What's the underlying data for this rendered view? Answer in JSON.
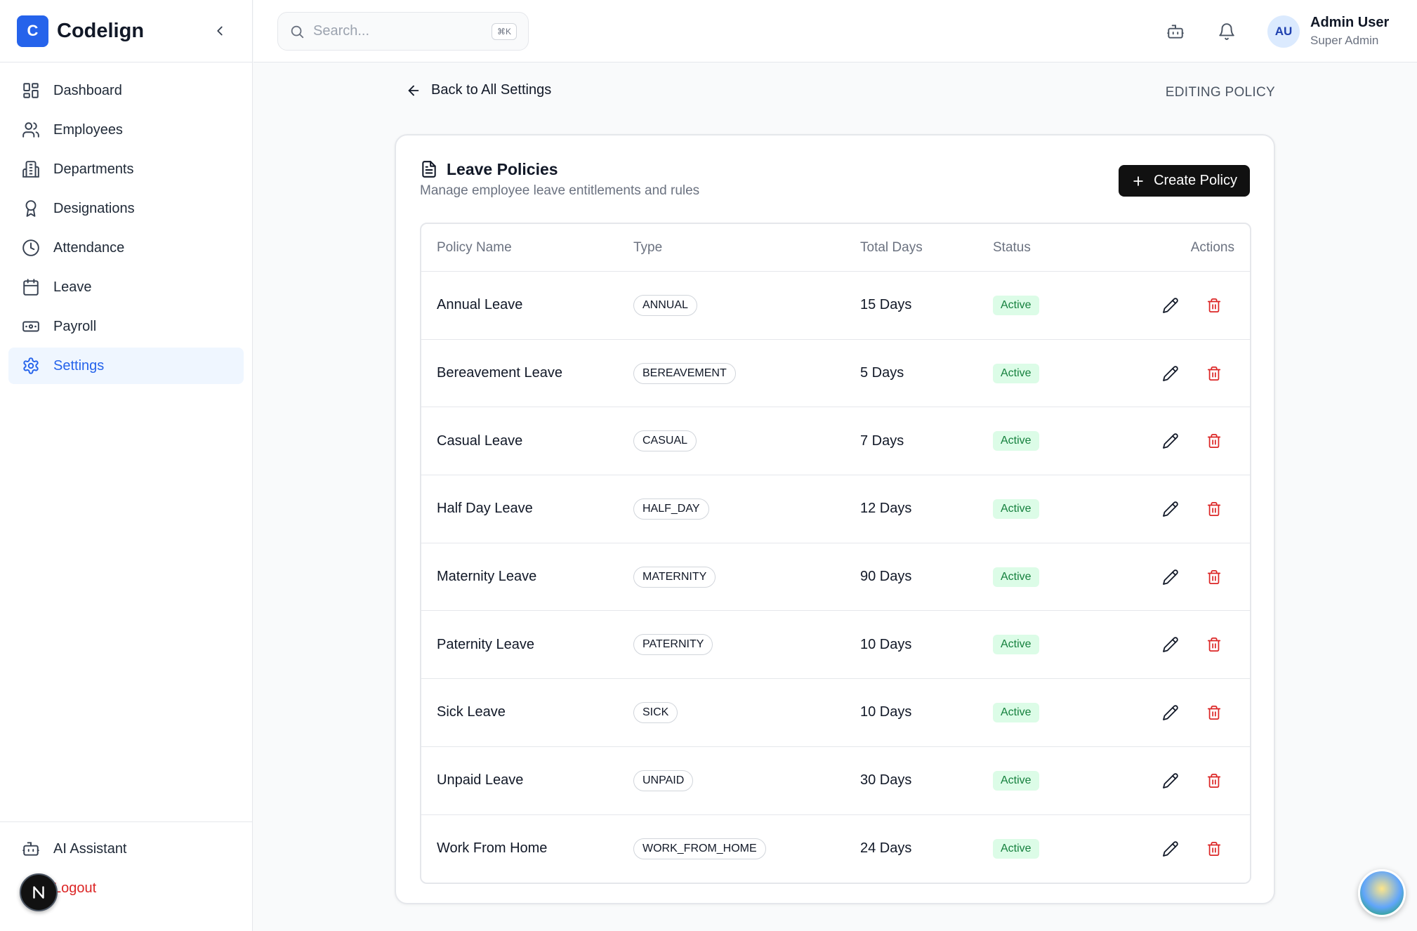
{
  "brand": {
    "logo_letter": "C",
    "name": "Codelign"
  },
  "sidebar": {
    "items": [
      {
        "label": "Dashboard",
        "icon": "dashboard-icon"
      },
      {
        "label": "Employees",
        "icon": "users-icon"
      },
      {
        "label": "Departments",
        "icon": "building-icon"
      },
      {
        "label": "Designations",
        "icon": "award-icon"
      },
      {
        "label": "Attendance",
        "icon": "clock-icon"
      },
      {
        "label": "Leave",
        "icon": "calendar-icon"
      },
      {
        "label": "Payroll",
        "icon": "banknote-icon"
      },
      {
        "label": "Settings",
        "icon": "gear-icon",
        "active": true
      }
    ],
    "bottom": [
      {
        "label": "AI Assistant",
        "icon": "bot-icon"
      },
      {
        "label": "Logout",
        "icon": "logout-icon"
      }
    ]
  },
  "topbar": {
    "search_placeholder": "Search...",
    "search_shortcut": "⌘K",
    "user": {
      "initials": "AU",
      "name": "Admin User",
      "role": "Super Admin"
    }
  },
  "page": {
    "back_label": "Back to All Settings",
    "mode_label": "EDITING POLICY"
  },
  "card": {
    "title": "Leave Policies",
    "subtitle": "Manage employee leave entitlements and rules",
    "create_label": "Create Policy"
  },
  "table": {
    "headers": {
      "name": "Policy Name",
      "type": "Type",
      "days": "Total Days",
      "status": "Status",
      "actions": "Actions"
    },
    "rows": [
      {
        "name": "Annual Leave",
        "type": "ANNUAL",
        "days": "15 Days",
        "status": "Active"
      },
      {
        "name": "Bereavement Leave",
        "type": "BEREAVEMENT",
        "days": "5 Days",
        "status": "Active"
      },
      {
        "name": "Casual Leave",
        "type": "CASUAL",
        "days": "7 Days",
        "status": "Active"
      },
      {
        "name": "Half Day Leave",
        "type": "HALF_DAY",
        "days": "12 Days",
        "status": "Active"
      },
      {
        "name": "Maternity Leave",
        "type": "MATERNITY",
        "days": "90 Days",
        "status": "Active"
      },
      {
        "name": "Paternity Leave",
        "type": "PATERNITY",
        "days": "10 Days",
        "status": "Active"
      },
      {
        "name": "Sick Leave",
        "type": "SICK",
        "days": "10 Days",
        "status": "Active"
      },
      {
        "name": "Unpaid Leave",
        "type": "UNPAID",
        "days": "30 Days",
        "status": "Active"
      },
      {
        "name": "Work From Home",
        "type": "WORK_FROM_HOME",
        "days": "24 Days",
        "status": "Active"
      }
    ]
  },
  "colors": {
    "accent": "#2563eb",
    "danger": "#dc2626",
    "success": "#15803d",
    "success_bg": "#dcfce7"
  }
}
